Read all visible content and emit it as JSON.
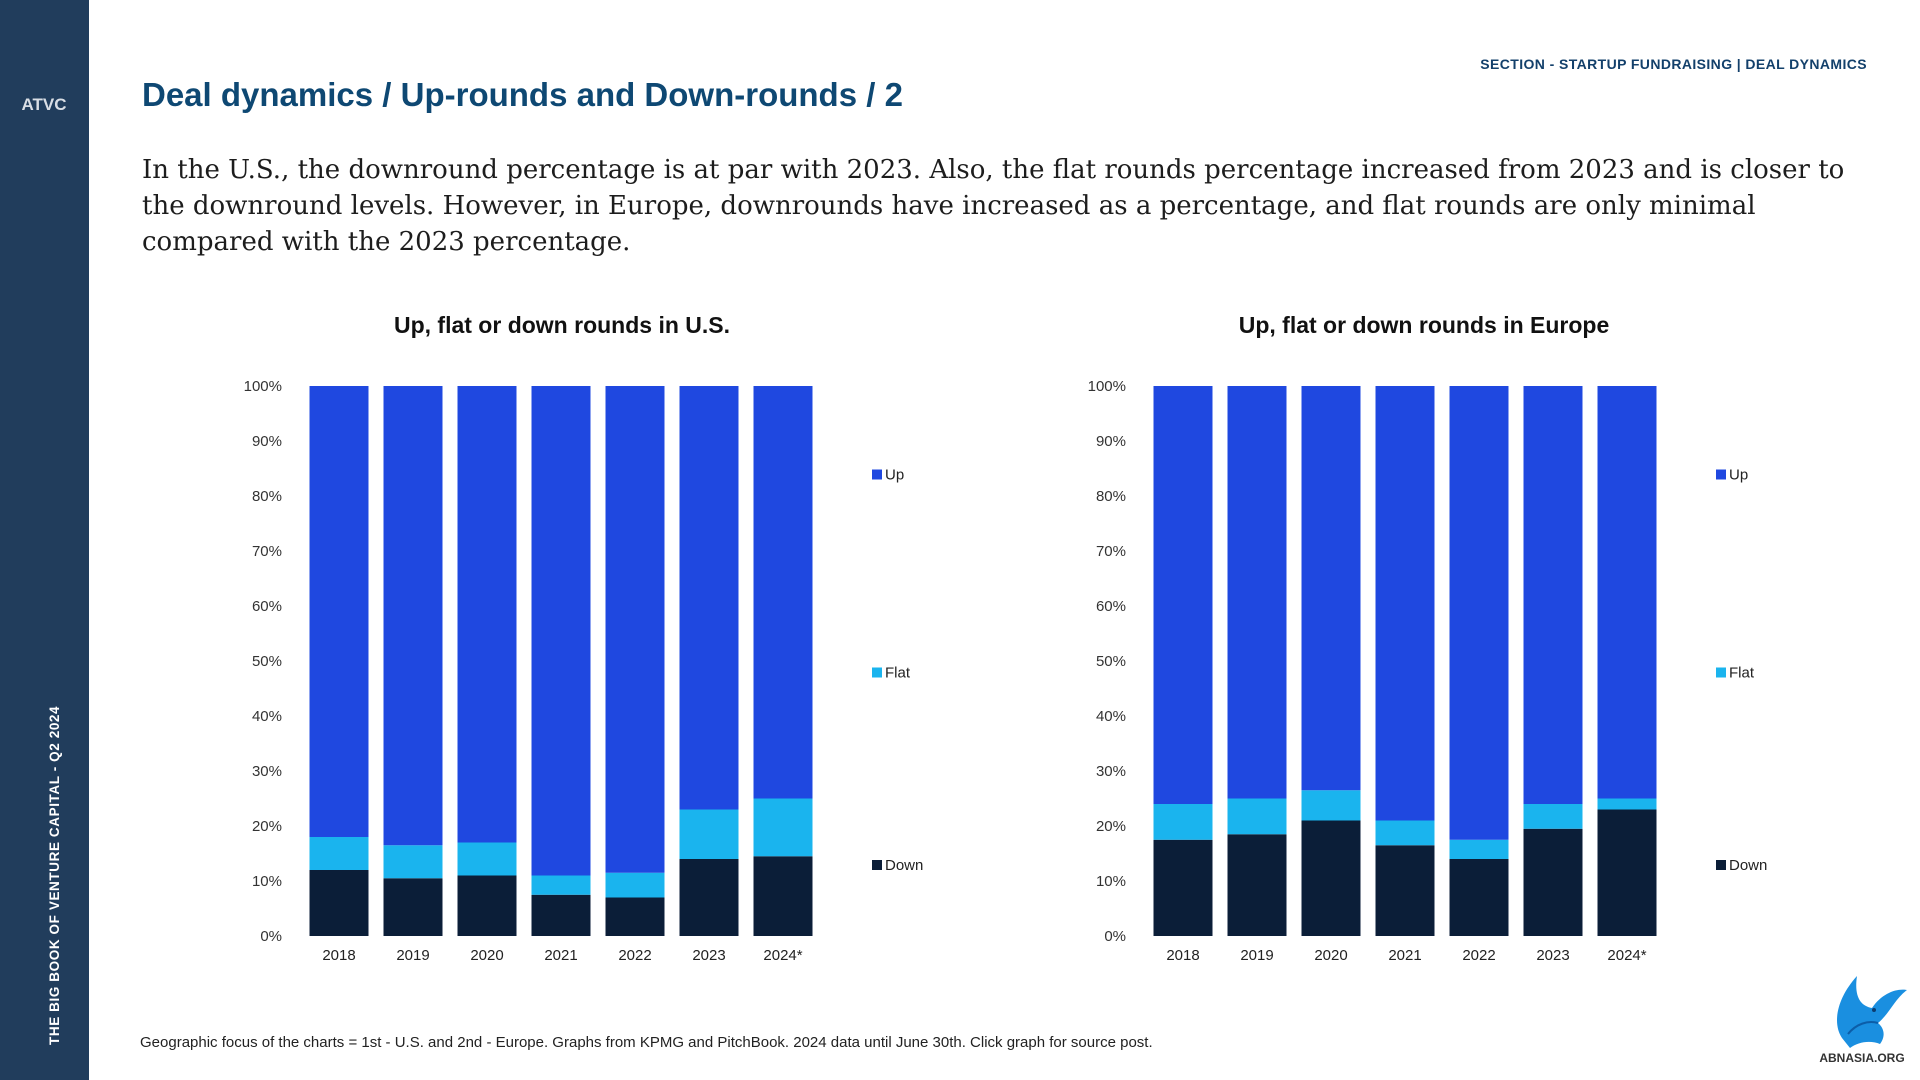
{
  "sidebar": {
    "logo_text": "ATVC",
    "vertical_text": "THE BIG BOOK OF VENTURE CAPITAL - Q2 2024"
  },
  "header": {
    "section": "SECTION - STARTUP FUNDRAISING | DEAL DYNAMICS",
    "title": "Deal dynamics / Up-rounds and Down-rounds / 2",
    "intro": "In the U.S., the downround percentage is at par with 2023. Also, the flat rounds percentage increased from 2023 and is closer to the downround levels. However, in Europe, downrounds have increased as a percentage, and flat rounds are only minimal compared with the 2023 percentage."
  },
  "footnote": "Geographic focus of the charts = 1st - U.S. and 2nd - Europe. Graphs from KPMG  and PitchBook. 2024 data until June 30th. Click graph for source post.",
  "watermark": "ABNASIA.ORG",
  "colors": {
    "sidebar": "#213d5c",
    "up": "#1f48e0",
    "flat": "#1ab4ee",
    "down": "#0b1e38",
    "title": "#0e4873"
  },
  "chart_data": [
    {
      "type": "bar",
      "stacked": true,
      "title": "Up, flat or down rounds in U.S.",
      "categories": [
        "2018",
        "2019",
        "2020",
        "2021",
        "2022",
        "2023",
        "2024*"
      ],
      "series": [
        {
          "name": "Down",
          "values": [
            12,
            10.5,
            11,
            7.5,
            7,
            14,
            14.5
          ]
        },
        {
          "name": "Flat",
          "values": [
            6,
            6,
            6,
            3.5,
            4.5,
            9,
            10.5
          ]
        },
        {
          "name": "Up",
          "values": [
            82,
            83.5,
            83,
            89,
            88.5,
            77,
            75
          ]
        }
      ],
      "yticks": [
        "0%",
        "10%",
        "20%",
        "30%",
        "40%",
        "50%",
        "60%",
        "70%",
        "80%",
        "90%",
        "100%"
      ],
      "ylim": [
        0,
        100
      ],
      "legend": "right",
      "grid": false
    },
    {
      "type": "bar",
      "stacked": true,
      "title": "Up, flat or down rounds in Europe",
      "categories": [
        "2018",
        "2019",
        "2020",
        "2021",
        "2022",
        "2023",
        "2024*"
      ],
      "series": [
        {
          "name": "Down",
          "values": [
            17.5,
            18.5,
            21,
            16.5,
            14,
            19.5,
            23
          ]
        },
        {
          "name": "Flat",
          "values": [
            6.5,
            6.5,
            5.5,
            4.5,
            3.5,
            4.5,
            2
          ]
        },
        {
          "name": "Up",
          "values": [
            76,
            75,
            73.5,
            79,
            82.5,
            76,
            75
          ]
        }
      ],
      "yticks": [
        "0%",
        "10%",
        "20%",
        "30%",
        "40%",
        "50%",
        "60%",
        "70%",
        "80%",
        "90%",
        "100%"
      ],
      "ylim": [
        0,
        100
      ],
      "legend": "right",
      "grid": false
    }
  ]
}
